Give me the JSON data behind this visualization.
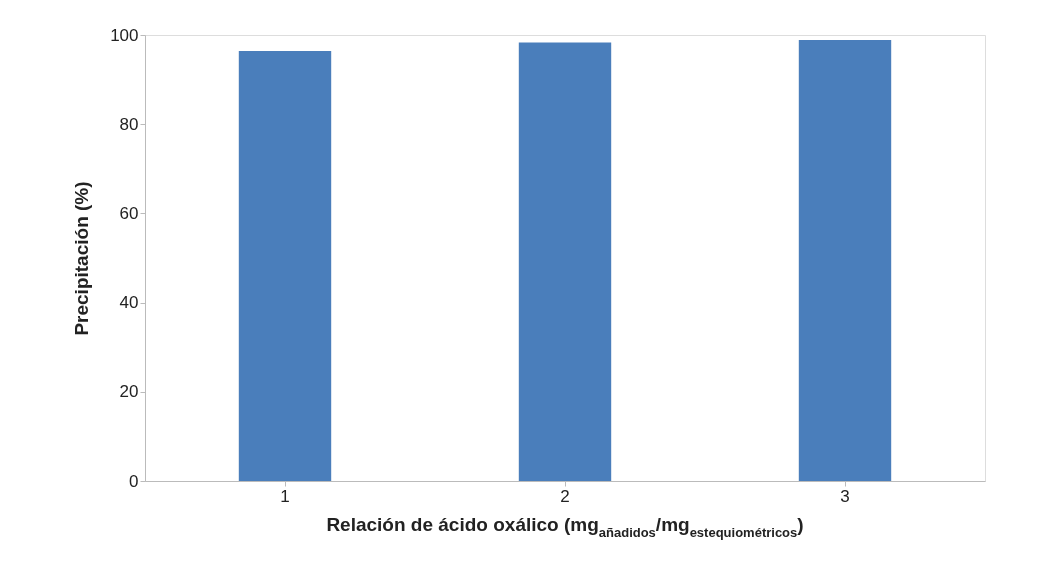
{
  "chart_data": {
    "type": "bar",
    "xlabel": "Relación de ácido oxálico (mg$_{añadidos}$/mg$_{estequiométricos}$)",
    "ylabel": "Precipitación (%)",
    "categories": [
      "1",
      "2",
      "3"
    ],
    "values": [
      96.4,
      98.3,
      98.9
    ],
    "color": "#4a7ebb",
    "ylim": [
      0,
      100
    ],
    "yticks": [
      0,
      20,
      40,
      60,
      80,
      100
    ],
    "grid": false
  }
}
